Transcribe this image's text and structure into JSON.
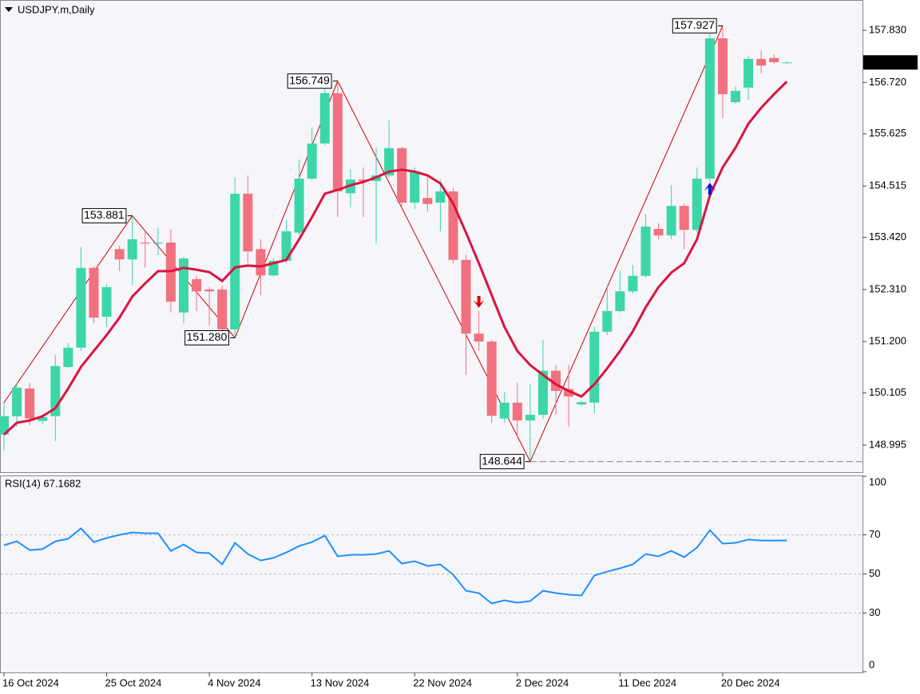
{
  "chart_data": {
    "type": "candlestick",
    "title": "USDJPY.m,Daily",
    "categories": [
      "16 Oct 2024",
      null,
      null,
      null,
      null,
      null,
      null,
      null,
      "25 Oct 2024",
      null,
      null,
      null,
      null,
      null,
      null,
      null,
      "4 Nov 2024",
      null,
      null,
      null,
      null,
      null,
      null,
      null,
      "13 Nov 2024",
      null,
      null,
      null,
      null,
      null,
      null,
      null,
      "22 Nov 2024",
      null,
      null,
      null,
      null,
      null,
      null,
      null,
      "2 Dec 2024",
      null,
      null,
      null,
      null,
      null,
      null,
      null,
      "11 Dec 2024",
      null,
      null,
      null,
      null,
      null,
      null,
      null,
      "20 Dec 2024",
      null,
      null,
      null,
      null,
      null
    ],
    "open": [
      149.22,
      149.61,
      150.2,
      149.51,
      149.61,
      150.66,
      151.07,
      152.77,
      151.73,
      153.17,
      152.95,
      153.31,
      153.29,
      153.31,
      151.82,
      152.53,
      152.31,
      152.31,
      151.46,
      154.35,
      153.17,
      152.61,
      152.92,
      153.52,
      154.67,
      155.42,
      156.49,
      154.36,
      154.65,
      154.62,
      154.74,
      155.32,
      154.16,
      154.26,
      154.16,
      154.4,
      152.94,
      151.37,
      151.2,
      149.56,
      149.9,
      149.52,
      149.64,
      150.58,
      150.19,
      149.86,
      149.9,
      151.41,
      151.85,
      152.27,
      152.6,
      153.6,
      153.46,
      154.09,
      153.58,
      154.67,
      157.66,
      156.3,
      156.61,
      157.22,
      157.24,
      157.13
    ],
    "high": [
      149.9,
      150.32,
      150.32,
      149.64,
      150.92,
      151.17,
      153.21,
      152.8,
      152.43,
      153.24,
      153.881,
      153.55,
      153.63,
      153.6,
      153.0,
      152.61,
      152.36,
      152.39,
      154.7,
      154.74,
      153.38,
      152.97,
      153.8,
      155.08,
      155.76,
      156.7,
      156.749,
      154.87,
      154.91,
      155.33,
      155.91,
      155.35,
      154.91,
      154.7,
      154.65,
      154.47,
      153.04,
      151.85,
      151.24,
      150.12,
      150.32,
      150.29,
      151.24,
      150.7,
      150.7,
      149.94,
      151.51,
      152.36,
      152.7,
      152.83,
      153.92,
      153.72,
      154.53,
      154.14,
      154.91,
      157.8,
      157.927,
      156.64,
      157.29,
      157.39,
      157.32,
      157.17
    ],
    "low": [
      148.88,
      149.39,
      149.42,
      149.44,
      149.08,
      150.63,
      151.0,
      151.59,
      151.51,
      152.7,
      152.41,
      152.78,
      153.04,
      151.82,
      151.59,
      151.85,
      151.54,
      151.37,
      151.28,
      152.87,
      152.19,
      152.58,
      152.87,
      153.45,
      154.64,
      155.38,
      153.85,
      154.06,
      153.85,
      153.29,
      154.7,
      154.09,
      154.02,
      153.97,
      153.55,
      152.87,
      150.49,
      151.0,
      149.47,
      149.47,
      149.17,
      148.644,
      149.56,
      149.64,
      149.39,
      149.83,
      149.67,
      151.34,
      151.82,
      152.22,
      152.56,
      153.38,
      153.38,
      153.17,
      153.52,
      154.6,
      155.96,
      156.27,
      156.35,
      156.91,
      157.12,
      157.12
    ],
    "close": [
      149.61,
      150.22,
      149.56,
      149.59,
      150.68,
      151.07,
      152.77,
      151.71,
      152.36,
      152.95,
      153.38,
      153.29,
      153.31,
      152.05,
      152.97,
      152.27,
      152.27,
      151.46,
      154.35,
      153.12,
      152.61,
      152.92,
      153.55,
      154.67,
      155.42,
      156.49,
      154.4,
      154.65,
      154.62,
      154.74,
      155.32,
      154.16,
      154.82,
      154.13,
      154.4,
      152.94,
      151.37,
      151.2,
      149.62,
      149.9,
      149.52,
      149.64,
      150.58,
      150.15,
      150.03,
      149.91,
      151.41,
      151.85,
      152.27,
      152.6,
      153.65,
      153.46,
      154.09,
      153.58,
      154.67,
      157.66,
      156.47,
      156.54,
      157.22,
      157.08,
      157.15,
      157.146
    ],
    "up_color": "#3dd6a8",
    "down_color": "#f2717e",
    "ma": {
      "color": "#dc143c",
      "values": [
        149.22,
        149.47,
        149.52,
        149.61,
        149.78,
        150.2,
        150.66,
        151.0,
        151.34,
        151.71,
        152.16,
        152.44,
        152.7,
        152.7,
        152.77,
        152.73,
        152.68,
        152.49,
        152.78,
        152.82,
        152.8,
        152.87,
        152.94,
        153.38,
        153.85,
        154.35,
        154.43,
        154.53,
        154.6,
        154.7,
        154.82,
        154.86,
        154.82,
        154.74,
        154.57,
        154.14,
        153.52,
        152.87,
        152.19,
        151.51,
        151.0,
        150.7,
        150.49,
        150.29,
        150.15,
        150.03,
        150.29,
        150.63,
        151.0,
        151.42,
        151.93,
        152.36,
        152.67,
        152.87,
        153.38,
        154.31,
        154.91,
        155.33,
        155.84,
        156.18,
        156.47,
        156.74
      ]
    },
    "zigzag": {
      "color": "#cc0000",
      "x": [
        0,
        10,
        18,
        26,
        41,
        56
      ],
      "values": [
        149.9,
        153.881,
        151.28,
        156.749,
        148.644,
        157.927
      ],
      "value_labels": [
        null,
        "153.881",
        "151.280",
        "156.749",
        "148.644",
        "157.927"
      ]
    },
    "hline": {
      "value": 148.644,
      "from": 41
    },
    "signals": [
      {
        "x": 37,
        "value": 152.02,
        "direction": "down",
        "color": "#e00000"
      },
      {
        "x": 55,
        "value": 154.48,
        "direction": "up",
        "color": "#0018d0"
      }
    ],
    "current_price": {
      "value": 157.146
    },
    "ylim": [
      148.417,
      158.476
    ],
    "yticks": [
      {
        "value": 157.83,
        "label": "157.830"
      },
      {
        "value": 156.72,
        "label": "156.720"
      },
      155.625,
      154.515,
      {
        "value": 153.42,
        "label": "153.420"
      },
      {
        "value": 152.31,
        "label": "152.310"
      },
      {
        "value": 151.2,
        "label": "151.200"
      },
      150.105,
      148.995
    ],
    "rsi": {
      "label": "RSI(14) 67.1682",
      "color": "#1e90ff",
      "values": [
        64.7,
        66.7,
        62.2,
        62.7,
        66.7,
        68.0,
        73.3,
        66.3,
        68.4,
        70.0,
        71.2,
        70.8,
        70.8,
        61.8,
        65.1,
        61.0,
        60.6,
        54.9,
        65.9,
        60.2,
        56.9,
        58.2,
        61.0,
        64.3,
        66.3,
        69.6,
        59.0,
        59.8,
        59.8,
        60.2,
        61.8,
        55.3,
        56.5,
        54.1,
        54.9,
        49.6,
        41.4,
        40.2,
        34.9,
        36.5,
        35.3,
        36.1,
        41.4,
        40.2,
        39.4,
        39.0,
        49.2,
        51.2,
        52.9,
        54.9,
        60.2,
        59.0,
        61.8,
        58.6,
        63.5,
        72.4,
        65.5,
        65.9,
        67.6,
        67.1,
        67.1,
        67.1682
      ],
      "ylim": [
        0,
        100
      ],
      "yticks": [
        100,
        70,
        50,
        30,
        0
      ],
      "levels": [
        70,
        50,
        30
      ]
    }
  }
}
